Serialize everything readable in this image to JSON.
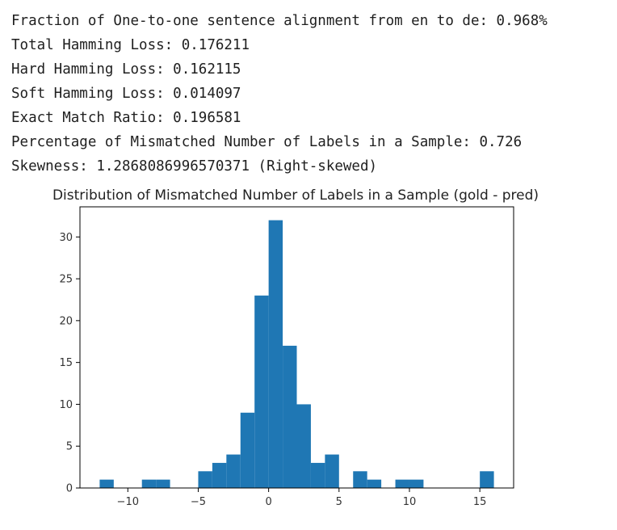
{
  "output": {
    "lines": [
      "Fraction of One-to-one sentence alignment from en to de: 0.968%",
      "Total Hamming Loss: 0.176211",
      "Hard Hamming Loss: 0.162115",
      "Soft Hamming Loss: 0.014097",
      "Exact Match Ratio: 0.196581",
      "Percentage of Mismatched Number of Labels in a Sample: 0.726",
      "Skewness: 1.2868086996570371 (Right-skewed)"
    ]
  },
  "chart_data": {
    "type": "bar",
    "title": "Distribution of Mismatched Number of Labels in a Sample (gold - pred)",
    "xlabel": "",
    "ylabel": "",
    "xlim": [
      -13.4,
      17.4
    ],
    "ylim": [
      0,
      33.6
    ],
    "x_ticks": [
      -10,
      -5,
      0,
      5,
      10,
      15
    ],
    "x_tick_labels": [
      "−10",
      "−5",
      "0",
      "5",
      "10",
      "15"
    ],
    "y_ticks": [
      0,
      5,
      10,
      15,
      20,
      25,
      30
    ],
    "y_tick_labels": [
      "0",
      "5",
      "10",
      "15",
      "20",
      "25",
      "30"
    ],
    "bin_start": -12,
    "bin_width": 1,
    "values": [
      1,
      0,
      0,
      1,
      1,
      0,
      0,
      2,
      3,
      4,
      9,
      23,
      32,
      17,
      10,
      3,
      4,
      0,
      2,
      1,
      0,
      1,
      1,
      0,
      0,
      0,
      0,
      2
    ],
    "grid": false,
    "bar_color": "#1f77b4"
  }
}
